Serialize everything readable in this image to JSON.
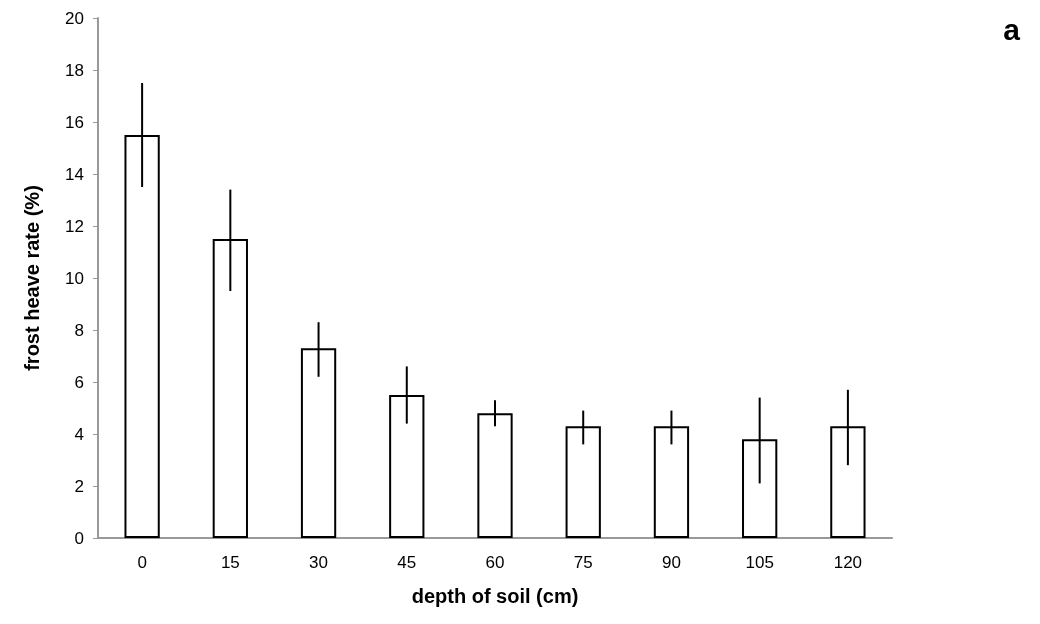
{
  "chart_data": {
    "type": "bar",
    "xlabel": "depth of soil (cm)",
    "ylabel": "frost heave rate (%)",
    "annotations": [
      "a"
    ],
    "categories": [
      "0",
      "15",
      "30",
      "45",
      "60",
      "75",
      "90",
      "105",
      "120"
    ],
    "values": [
      15.5,
      11.5,
      7.3,
      5.5,
      4.8,
      4.3,
      4.3,
      3.8,
      4.3
    ],
    "errors": [
      2,
      [
        9.5,
        13.4
      ],
      [
        6.2,
        8.3
      ],
      [
        4.4,
        6.6
      ],
      [
        4.3,
        5.3
      ],
      [
        3.6,
        4.9
      ],
      [
        3.6,
        4.9
      ],
      [
        2.1,
        5.4
      ],
      [
        2.8,
        5.7
      ]
    ],
    "color": "#ffffff",
    "ylim": [
      0,
      20
    ],
    "yticks": [
      0,
      2,
      4,
      6,
      8,
      10,
      12,
      14,
      16,
      18,
      20
    ],
    "grid": false
  }
}
